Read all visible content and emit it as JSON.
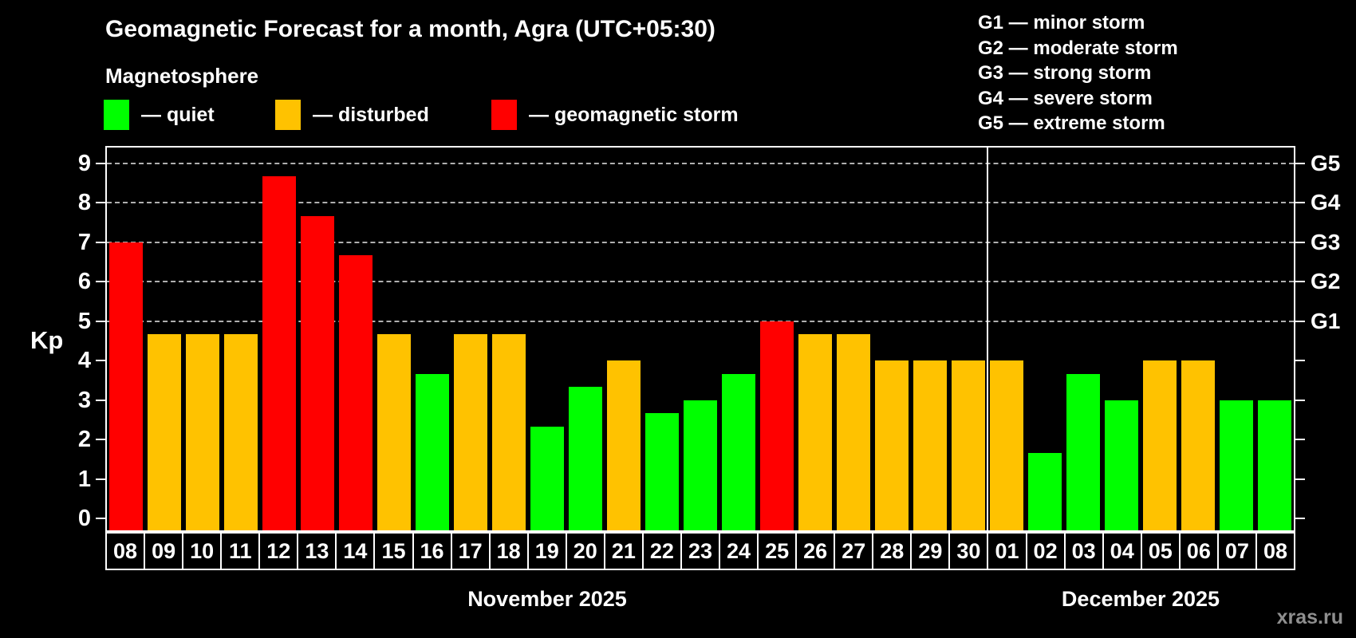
{
  "header": {
    "title": "Geomagnetic Forecast for a month, Agra (UTC+05:30)",
    "subtitle": "Magnetosphere"
  },
  "legend": {
    "items": [
      {
        "name": "quiet",
        "label": "— quiet",
        "color": "#00ff00"
      },
      {
        "name": "disturbed",
        "label": "— disturbed",
        "color": "#ffc200"
      },
      {
        "name": "storm",
        "label": "— geomagnetic storm",
        "color": "#ff0000"
      }
    ]
  },
  "g_scale": {
    "items": [
      "G1 — minor storm",
      "G2 — moderate storm",
      "G3 — strong storm",
      "G4 — severe storm",
      "G5 — extreme storm"
    ]
  },
  "watermark": {
    "text": "xras.ru"
  },
  "chart_data": {
    "type": "bar",
    "title": "Geomagnetic Forecast for a month, Agra (UTC+05:30)",
    "ylabel": "Kp",
    "ylim": [
      -0.3,
      9.4
    ],
    "yticks": [
      0,
      1,
      2,
      3,
      4,
      5,
      6,
      7,
      8,
      9
    ],
    "grid_kp": [
      5,
      6,
      7,
      8,
      9
    ],
    "grid_style": "dashed",
    "legend_position": "top",
    "right_axis": [
      {
        "kp": 5,
        "label": "G1"
      },
      {
        "kp": 6,
        "label": "G2"
      },
      {
        "kp": 7,
        "label": "G3"
      },
      {
        "kp": 8,
        "label": "G4"
      },
      {
        "kp": 9,
        "label": "G5"
      }
    ],
    "months": [
      {
        "label": "November 2025",
        "days": [
          "08",
          "09",
          "10",
          "11",
          "12",
          "13",
          "14",
          "15",
          "16",
          "17",
          "18",
          "19",
          "20",
          "21",
          "22",
          "23",
          "24",
          "25",
          "26",
          "27",
          "28",
          "29",
          "30"
        ],
        "values": [
          7.0,
          4.67,
          4.67,
          4.67,
          8.67,
          7.67,
          6.67,
          4.67,
          3.67,
          4.67,
          4.67,
          2.33,
          3.33,
          4.0,
          2.67,
          3.0,
          3.67,
          5.0,
          4.67,
          4.67,
          4.0,
          4.0,
          4.0
        ]
      },
      {
        "label": "December 2025",
        "days": [
          "01",
          "02",
          "03",
          "04",
          "05",
          "06",
          "07",
          "08"
        ],
        "values": [
          4.0,
          1.67,
          3.67,
          3.0,
          4.0,
          4.0,
          3.0,
          3.0
        ]
      }
    ],
    "colors": {
      "quiet": "#00ff00",
      "disturbed": "#ffc200",
      "storm": "#ff0000"
    },
    "thresholds": {
      "disturbed_min": 4,
      "storm_min": 5
    }
  }
}
